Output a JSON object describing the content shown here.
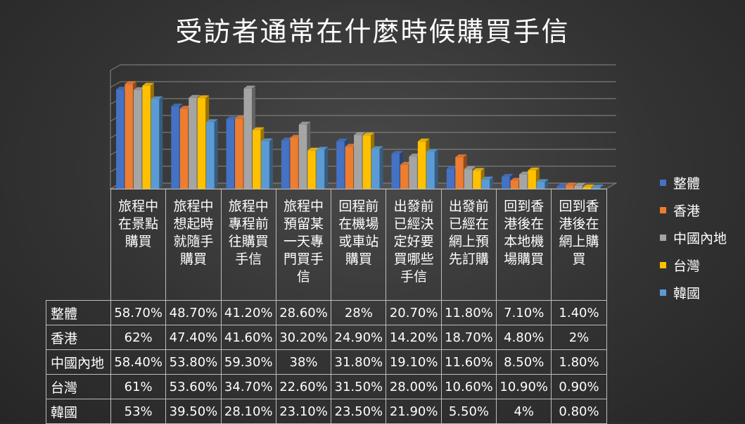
{
  "chart_data": {
    "type": "bar",
    "title": "受訪者通常在什麼時候購買手信",
    "categories": [
      "旅程中在景點購買",
      "旅程中想起時就隨手購買",
      "旅程中專程前往購買手信",
      "旅程中預留某一天專門買手信",
      "回程前在機場或車站購買",
      "出發前已經決定好要買哪些手信",
      "出發前已經在網上預先訂購",
      "回到香港後在本地機場購買",
      "回到香港後在網上購買"
    ],
    "category_lines": [
      [
        "旅程中",
        "在景點",
        "購買"
      ],
      [
        "旅程中",
        "想起時",
        "就隨手",
        "購買"
      ],
      [
        "旅程中",
        "專程前",
        "往購買",
        "手信"
      ],
      [
        "旅程中",
        "預留某",
        "一天專",
        "門買手",
        "信"
      ],
      [
        "回程前",
        "在機場",
        "或車站",
        "購買"
      ],
      [
        "出發前",
        "已經決",
        "定好要",
        "買哪些",
        "手信"
      ],
      [
        "出發前",
        "已經在",
        "網上預",
        "先訂購"
      ],
      [
        "回到香",
        "港後在",
        "本地機",
        "場購買"
      ],
      [
        "回到香",
        "港後在",
        "網上購",
        "買"
      ]
    ],
    "series": [
      {
        "name": "整體",
        "color": "#4472c4",
        "values": [
          58.7,
          48.7,
          41.2,
          28.6,
          28,
          20.7,
          11.8,
          7.1,
          1.4
        ],
        "labels": [
          "58.70%",
          "48.70%",
          "41.20%",
          "28.60%",
          "28%",
          "20.70%",
          "11.80%",
          "7.10%",
          "1.40%"
        ]
      },
      {
        "name": "香港",
        "color": "#ed7d31",
        "values": [
          62,
          47.4,
          41.6,
          30.2,
          24.9,
          14.2,
          18.7,
          4.8,
          2
        ],
        "labels": [
          "62%",
          "47.40%",
          "41.60%",
          "30.20%",
          "24.90%",
          "14.20%",
          "18.70%",
          "4.80%",
          "2%"
        ]
      },
      {
        "name": "中國內地",
        "color": "#a5a5a5",
        "values": [
          58.4,
          53.8,
          59.3,
          38,
          31.8,
          19.1,
          11.6,
          8.5,
          1.8
        ],
        "labels": [
          "58.40%",
          "53.80%",
          "59.30%",
          "38%",
          "31.80%",
          "19.10%",
          "11.60%",
          "8.50%",
          "1.80%"
        ]
      },
      {
        "name": "台灣",
        "color": "#ffc000",
        "values": [
          61,
          53.6,
          34.7,
          22.6,
          31.5,
          28,
          10.6,
          10.9,
          0.9
        ],
        "labels": [
          "61%",
          "53.60%",
          "34.70%",
          "22.60%",
          "31.50%",
          "28.00%",
          "10.60%",
          "10.90%",
          "0.90%"
        ]
      },
      {
        "name": "韓國",
        "color": "#5b9bd5",
        "values": [
          53,
          39.5,
          28.1,
          23.1,
          23.5,
          21.9,
          5.5,
          4,
          0.8
        ],
        "labels": [
          "53%",
          "39.50%",
          "28.10%",
          "23.10%",
          "23.50%",
          "21.90%",
          "5.50%",
          "4%",
          "0.80%"
        ]
      }
    ],
    "ylim": [
      0,
      70
    ],
    "grid": true,
    "legend": "right",
    "data_table": true
  }
}
